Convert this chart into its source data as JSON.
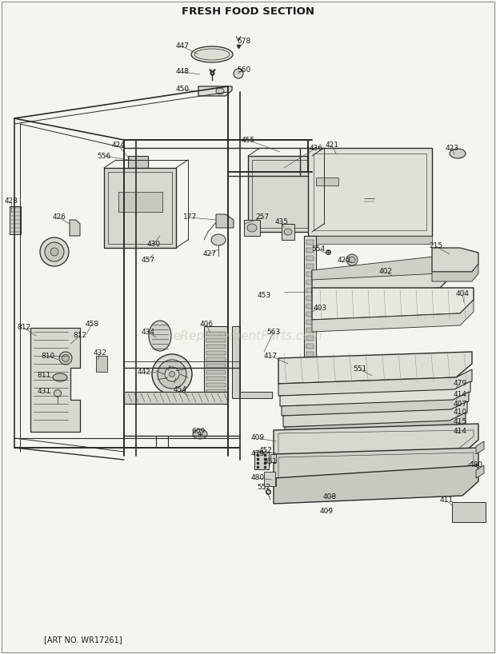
{
  "title": "FRESH FOOD SECTION",
  "art_no": "[ART NO. WR17261]",
  "watermark": "eReplacementParts.com",
  "bg_color": "#f5f5f0",
  "line_color": "#2a2a2a",
  "label_color": "#1a1a1a",
  "title_fontsize": 9.5,
  "label_fontsize": 6.5,
  "watermark_fontsize": 11,
  "art_no_fontsize": 7,
  "fig_width": 6.2,
  "fig_height": 8.18
}
